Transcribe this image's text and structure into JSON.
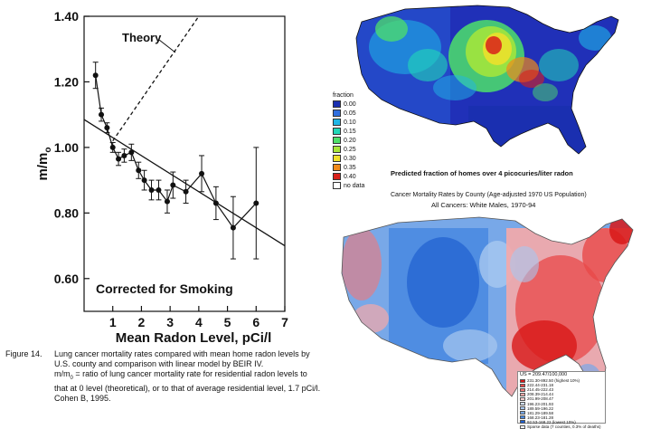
{
  "chart_data": {
    "type": "scatter",
    "xlabel": "Mean Radon Level, pCi/l",
    "ylabel": "m/m",
    "ylabel_subscript": "o",
    "xlim": [
      0,
      7
    ],
    "ylim": [
      0.5,
      1.4
    ],
    "x_ticks": [
      1,
      2,
      3,
      4,
      5,
      6,
      7
    ],
    "y_ticks": [
      0.6,
      0.8,
      1.0,
      1.2,
      1.4
    ],
    "y_tick_labels": [
      "0.60",
      "0.80",
      "1.00",
      "1.20",
      "1.40"
    ],
    "annotations": {
      "theory_label": "Theory",
      "corrected_label": "Corrected for Smoking"
    },
    "series": [
      {
        "name": "Data points",
        "points": [
          {
            "x": 0.4,
            "y": 1.22,
            "ylo": 1.18,
            "yhi": 1.26
          },
          {
            "x": 0.6,
            "y": 1.1,
            "ylo": 1.08,
            "yhi": 1.12
          },
          {
            "x": 0.8,
            "y": 1.06,
            "ylo": 1.045,
            "yhi": 1.075
          },
          {
            "x": 1.0,
            "y": 1.0,
            "ylo": 0.985,
            "yhi": 1.015
          },
          {
            "x": 1.2,
            "y": 0.965,
            "ylo": 0.945,
            "yhi": 0.985
          },
          {
            "x": 1.4,
            "y": 0.975,
            "ylo": 0.955,
            "yhi": 0.995
          },
          {
            "x": 1.65,
            "y": 0.985,
            "ylo": 0.96,
            "yhi": 1.01
          },
          {
            "x": 1.9,
            "y": 0.93,
            "ylo": 0.905,
            "yhi": 0.955
          },
          {
            "x": 2.1,
            "y": 0.9,
            "ylo": 0.87,
            "yhi": 0.93
          },
          {
            "x": 2.35,
            "y": 0.87,
            "ylo": 0.84,
            "yhi": 0.9
          },
          {
            "x": 2.6,
            "y": 0.87,
            "ylo": 0.84,
            "yhi": 0.9
          },
          {
            "x": 2.9,
            "y": 0.835,
            "ylo": 0.8,
            "yhi": 0.87
          },
          {
            "x": 3.1,
            "y": 0.885,
            "ylo": 0.845,
            "yhi": 0.925
          },
          {
            "x": 3.55,
            "y": 0.865,
            "ylo": 0.83,
            "yhi": 0.9
          },
          {
            "x": 4.1,
            "y": 0.92,
            "ylo": 0.865,
            "yhi": 0.975
          },
          {
            "x": 4.6,
            "y": 0.83,
            "ylo": 0.78,
            "yhi": 0.88
          },
          {
            "x": 5.2,
            "y": 0.755,
            "ylo": 0.66,
            "yhi": 0.85
          },
          {
            "x": 6.0,
            "y": 0.83,
            "ylo": 0.66,
            "yhi": 1.0
          }
        ]
      },
      {
        "name": "BEIR IV linear model (Theory)",
        "line": [
          {
            "x": 1.0,
            "y": 1.02
          },
          {
            "x": 4.0,
            "y": 1.4
          }
        ],
        "dashed": true
      },
      {
        "name": "Fit line",
        "line": [
          {
            "x": 0.0,
            "y": 1.085
          },
          {
            "x": 7.0,
            "y": 0.7
          }
        ],
        "dashed": false
      }
    ]
  },
  "caption": {
    "figure_label": "Figure 14.",
    "line1": "Lung cancer mortality rates compared with mean home radon levels by",
    "line2": "U.S. county and comparison with linear model by BEIR IV.",
    "line3": "m/m",
    "line3_sub": "0",
    "line3_rest": " = ratio of lung cancer mortality rate for residential radon levels to",
    "line4": "that at 0 level (theoretical), or to that of average residential level, 1.7 pCi/l.",
    "line5": "Cohen B, 1995."
  },
  "radon_map": {
    "caption": "Predicted fraction of homes over 4 picocuries/liter radon",
    "legend_title": "fraction",
    "legend": [
      {
        "label": "0.00",
        "color": "#1a2fb0"
      },
      {
        "label": "0.05",
        "color": "#2f6fe0"
      },
      {
        "label": "0.10",
        "color": "#1fb6e6"
      },
      {
        "label": "0.15",
        "color": "#22d8b8"
      },
      {
        "label": "0.20",
        "color": "#4ee06a"
      },
      {
        "label": "0.25",
        "color": "#a8e63a"
      },
      {
        "label": "0.30",
        "color": "#f0e12a"
      },
      {
        "label": "0.35",
        "color": "#f08a1a"
      },
      {
        "label": "0.40",
        "color": "#d8201a"
      },
      {
        "label": "no data",
        "color": "#ffffff"
      }
    ]
  },
  "mortality_map": {
    "title": "Cancer Mortality Rates by County (Age-adjusted 1970 US Population)",
    "subtitle": "All Cancers:  White Males, 1970-94",
    "legend_header": "US = 209.47/100,000",
    "legend": [
      {
        "label": "231.30-892.50 (highest 10%)",
        "color": "#d81818"
      },
      {
        "label": "222.44-231.18",
        "color": "#e84848"
      },
      {
        "label": "214.45-222.43",
        "color": "#f07878"
      },
      {
        "label": "208.39-214.44",
        "color": "#f5a8a8"
      },
      {
        "label": "201.99-208.47",
        "color": "#f8d0d0"
      },
      {
        "label": "196.23-201.93",
        "color": "#d0e0f8"
      },
      {
        "label": "189.59-196.22",
        "color": "#a8c8f0"
      },
      {
        "label": "181.29-189.58",
        "color": "#78a8e8"
      },
      {
        "label": "168.23-181.28",
        "color": "#4888e0"
      },
      {
        "label": "92.53-168.22 (lowest 10%)",
        "color": "#2060d0"
      },
      {
        "label": "Sparse data (7 counties, 0.3% of deaths)",
        "color": "#ffffff"
      }
    ]
  }
}
